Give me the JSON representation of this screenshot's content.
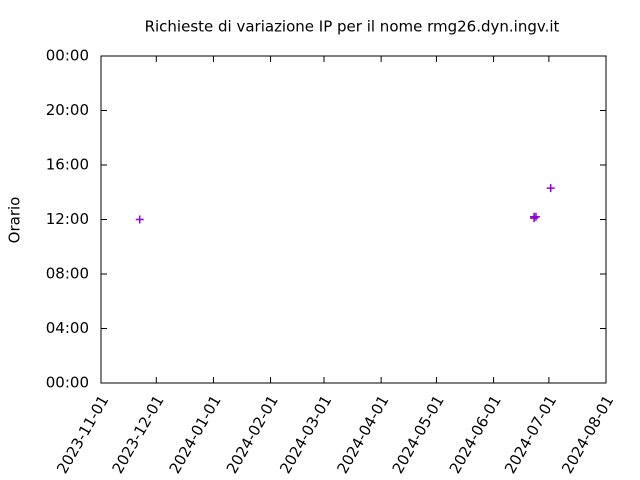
{
  "chart_data": {
    "type": "scatter",
    "title": "Richieste di variazione IP per il nome rmg26.dyn.ingv.it",
    "ylabel": "Orario",
    "series": [
      {
        "color": "#9400d3",
        "x": [
          "2023-11-22",
          "2024-06-23",
          "2024-06-23",
          "2024-06-24",
          "2024-07-02"
        ],
        "values": [
          12.0,
          12.2,
          12.1,
          12.2,
          14.3
        ]
      }
    ],
    "xlim": [
      "2023-11-01",
      "2024-08-01"
    ],
    "xticks": [
      "2023-11-01",
      "2023-12-01",
      "2024-01-01",
      "2024-02-01",
      "2024-03-01",
      "2024-04-01",
      "2024-05-01",
      "2024-06-01",
      "2024-07-01",
      "2024-08-01"
    ],
    "ylim": [
      0,
      24
    ],
    "yticks": [
      {
        "value": 0,
        "label": "00:00"
      },
      {
        "value": 4,
        "label": "04:00"
      },
      {
        "value": 8,
        "label": "08:00"
      },
      {
        "value": 12,
        "label": "12:00"
      },
      {
        "value": 16,
        "label": "16:00"
      },
      {
        "value": 20,
        "label": "20:00"
      },
      {
        "value": 24,
        "label": "00:00"
      }
    ],
    "grid": false
  }
}
